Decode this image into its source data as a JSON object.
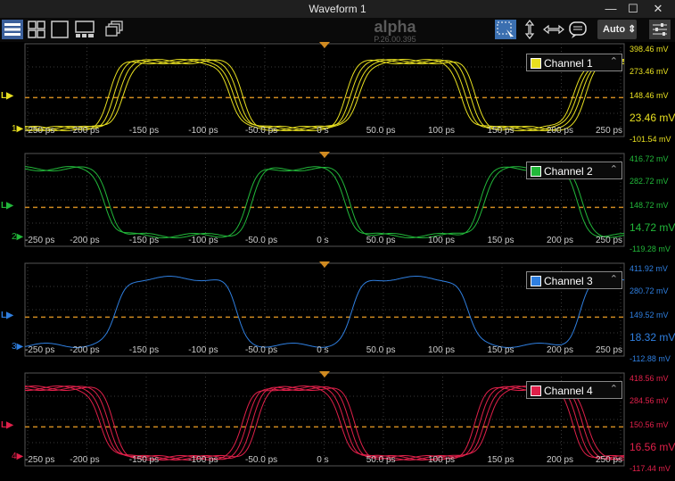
{
  "window": {
    "title": "Waveform 1",
    "min_icon": "minimize-icon",
    "max_icon": "maximize-icon",
    "close_icon": "close-icon"
  },
  "toolbar": {
    "layout_buttons": [
      "rows-layout-icon",
      "grid-layout-icon",
      "single-layout-icon",
      "split-layout-icon",
      "stacked-windows-icon"
    ],
    "tool_buttons": [
      "select-zoom-icon",
      "vertical-cursor-icon",
      "horizontal-cursor-icon",
      "annotation-icon"
    ],
    "auto_label": "Auto",
    "menu_icon": "settings-sliders-icon"
  },
  "brand": {
    "name": "alpha",
    "version": "P.26.00.395"
  },
  "time_axis": [
    "-250 ps",
    "-200 ps",
    "-150 ps",
    "-100 ps",
    "-50.0 ps",
    "0 s",
    "50.0 ps",
    "100 ps",
    "150 ps",
    "200 ps",
    "250 ps"
  ],
  "colors": {
    "ch1": "#e8e020",
    "ch2": "#22b83a",
    "ch3": "#2f7fe0",
    "ch4": "#e0204a",
    "level": "#d08a20",
    "grid": "#3a3a3a"
  },
  "channels": [
    {
      "name": "Channel 1",
      "number": "1",
      "level_label": "L",
      "color": "#e8e020",
      "scale": [
        "398.46 mV",
        "273.46 mV",
        "148.46 mV",
        "23.46 mV",
        "-101.54 mV"
      ]
    },
    {
      "name": "Channel 2",
      "number": "2",
      "level_label": "L",
      "color": "#22b83a",
      "scale": [
        "416.72 mV",
        "282.72 mV",
        "148.72 mV",
        "14.72 mV",
        "-119.28 mV"
      ]
    },
    {
      "name": "Channel 3",
      "number": "3",
      "level_label": "L",
      "color": "#2f7fe0",
      "scale": [
        "411.92 mV",
        "280.72 mV",
        "149.52 mV",
        "18.32 mV",
        "-112.88 mV"
      ]
    },
    {
      "name": "Channel 4",
      "number": "4",
      "level_label": "L",
      "color": "#e0204a",
      "scale": [
        "418.56 mV",
        "284.56 mV",
        "150.56 mV",
        "16.56 mV",
        "-117.44 mV"
      ]
    }
  ]
}
